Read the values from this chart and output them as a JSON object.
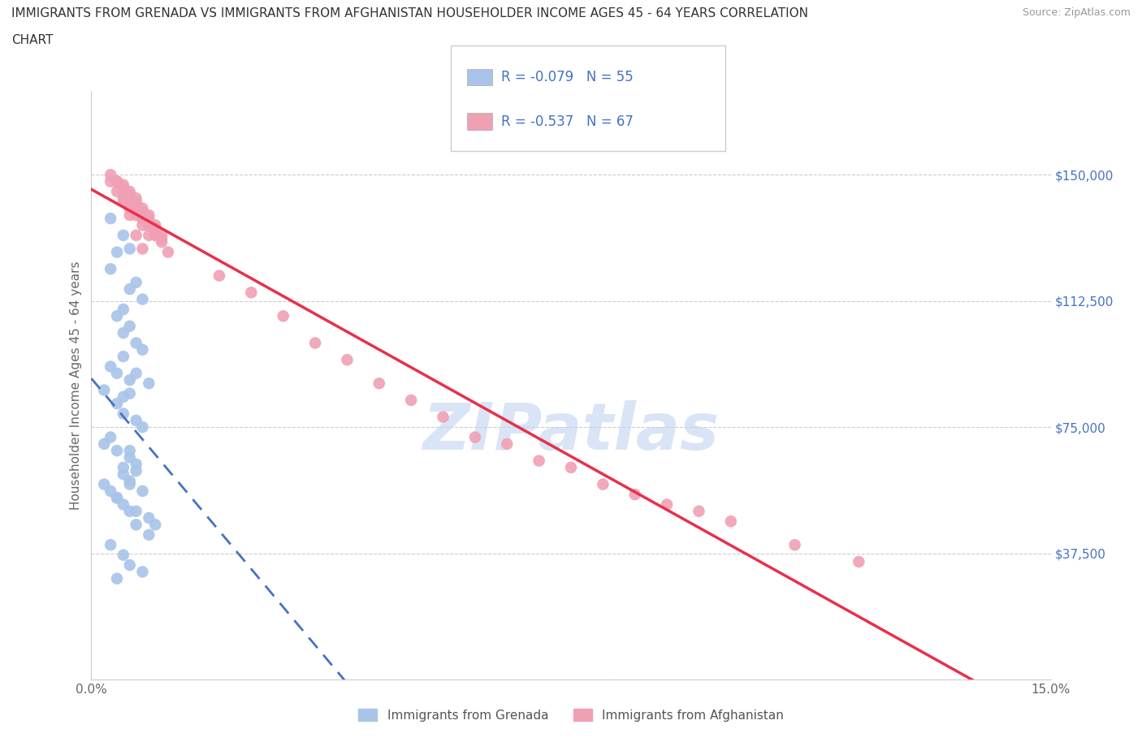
{
  "title_line1": "IMMIGRANTS FROM GRENADA VS IMMIGRANTS FROM AFGHANISTAN HOUSEHOLDER INCOME AGES 45 - 64 YEARS CORRELATION",
  "title_line2": "CHART",
  "source_text": "Source: ZipAtlas.com",
  "ylabel": "Householder Income Ages 45 - 64 years",
  "xlim": [
    0.0,
    0.15
  ],
  "ylim": [
    0,
    175000
  ],
  "xticks": [
    0.0,
    0.03,
    0.06,
    0.09,
    0.12,
    0.15
  ],
  "xticklabels": [
    "0.0%",
    "",
    "",
    "",
    "",
    "15.0%"
  ],
  "yticks": [
    0,
    37500,
    75000,
    112500,
    150000
  ],
  "yticklabels": [
    "",
    "$37,500",
    "$75,000",
    "$112,500",
    "$150,000"
  ],
  "legend_labels": [
    "Immigrants from Grenada",
    "Immigrants from Afghanistan"
  ],
  "legend_r1": "R = -0.079",
  "legend_n1": "N = 55",
  "legend_r2": "R = -0.537",
  "legend_n2": "N = 67",
  "scatter_color_grenada": "#a8c4e8",
  "scatter_color_afghanistan": "#f0a0b4",
  "line_color_grenada": "#4472c4",
  "line_color_afghanistan": "#e8304a",
  "watermark_color": "#c0d4f0",
  "background_color": "#ffffff",
  "grenada_x": [
    0.003,
    0.005,
    0.004,
    0.006,
    0.003,
    0.007,
    0.006,
    0.008,
    0.005,
    0.004,
    0.006,
    0.005,
    0.007,
    0.008,
    0.005,
    0.003,
    0.004,
    0.006,
    0.002,
    0.005,
    0.007,
    0.009,
    0.006,
    0.004,
    0.005,
    0.007,
    0.008,
    0.003,
    0.002,
    0.004,
    0.006,
    0.007,
    0.005,
    0.006,
    0.002,
    0.003,
    0.004,
    0.005,
    0.007,
    0.009,
    0.01,
    0.005,
    0.006,
    0.004,
    0.006,
    0.007,
    0.009,
    0.003,
    0.005,
    0.006,
    0.008,
    0.004,
    0.006,
    0.007,
    0.008
  ],
  "grenada_y": [
    137000,
    132000,
    127000,
    128000,
    122000,
    118000,
    116000,
    113000,
    110000,
    108000,
    105000,
    103000,
    100000,
    98000,
    96000,
    93000,
    91000,
    89000,
    86000,
    84000,
    91000,
    88000,
    85000,
    82000,
    79000,
    77000,
    75000,
    72000,
    70000,
    68000,
    66000,
    64000,
    61000,
    59000,
    58000,
    56000,
    54000,
    52000,
    50000,
    48000,
    46000,
    63000,
    58000,
    54000,
    50000,
    46000,
    43000,
    40000,
    37000,
    34000,
    32000,
    30000,
    68000,
    62000,
    56000
  ],
  "afghanistan_x": [
    0.003,
    0.005,
    0.006,
    0.007,
    0.008,
    0.004,
    0.006,
    0.008,
    0.005,
    0.007,
    0.009,
    0.004,
    0.006,
    0.008,
    0.01,
    0.005,
    0.007,
    0.009,
    0.006,
    0.008,
    0.01,
    0.012,
    0.005,
    0.007,
    0.009,
    0.011,
    0.006,
    0.008,
    0.01,
    0.007,
    0.009,
    0.011,
    0.003,
    0.005,
    0.007,
    0.009,
    0.004,
    0.006,
    0.008,
    0.005,
    0.007,
    0.009,
    0.011,
    0.006,
    0.008,
    0.01,
    0.007,
    0.009,
    0.02,
    0.025,
    0.03,
    0.035,
    0.04,
    0.045,
    0.05,
    0.055,
    0.06,
    0.07,
    0.08,
    0.09,
    0.1,
    0.11,
    0.12,
    0.095,
    0.075,
    0.065,
    0.085
  ],
  "afghanistan_y": [
    148000,
    142000,
    138000,
    132000,
    128000,
    145000,
    140000,
    135000,
    143000,
    138000,
    132000,
    148000,
    142000,
    137000,
    132000,
    145000,
    140000,
    135000,
    142000,
    137000,
    132000,
    127000,
    147000,
    140000,
    135000,
    130000,
    145000,
    140000,
    135000,
    143000,
    138000,
    132000,
    150000,
    145000,
    140000,
    135000,
    148000,
    143000,
    138000,
    146000,
    141000,
    136000,
    131000,
    144000,
    139000,
    134000,
    142000,
    137000,
    120000,
    115000,
    108000,
    100000,
    95000,
    88000,
    83000,
    78000,
    72000,
    65000,
    58000,
    52000,
    47000,
    40000,
    35000,
    50000,
    63000,
    70000,
    55000
  ]
}
